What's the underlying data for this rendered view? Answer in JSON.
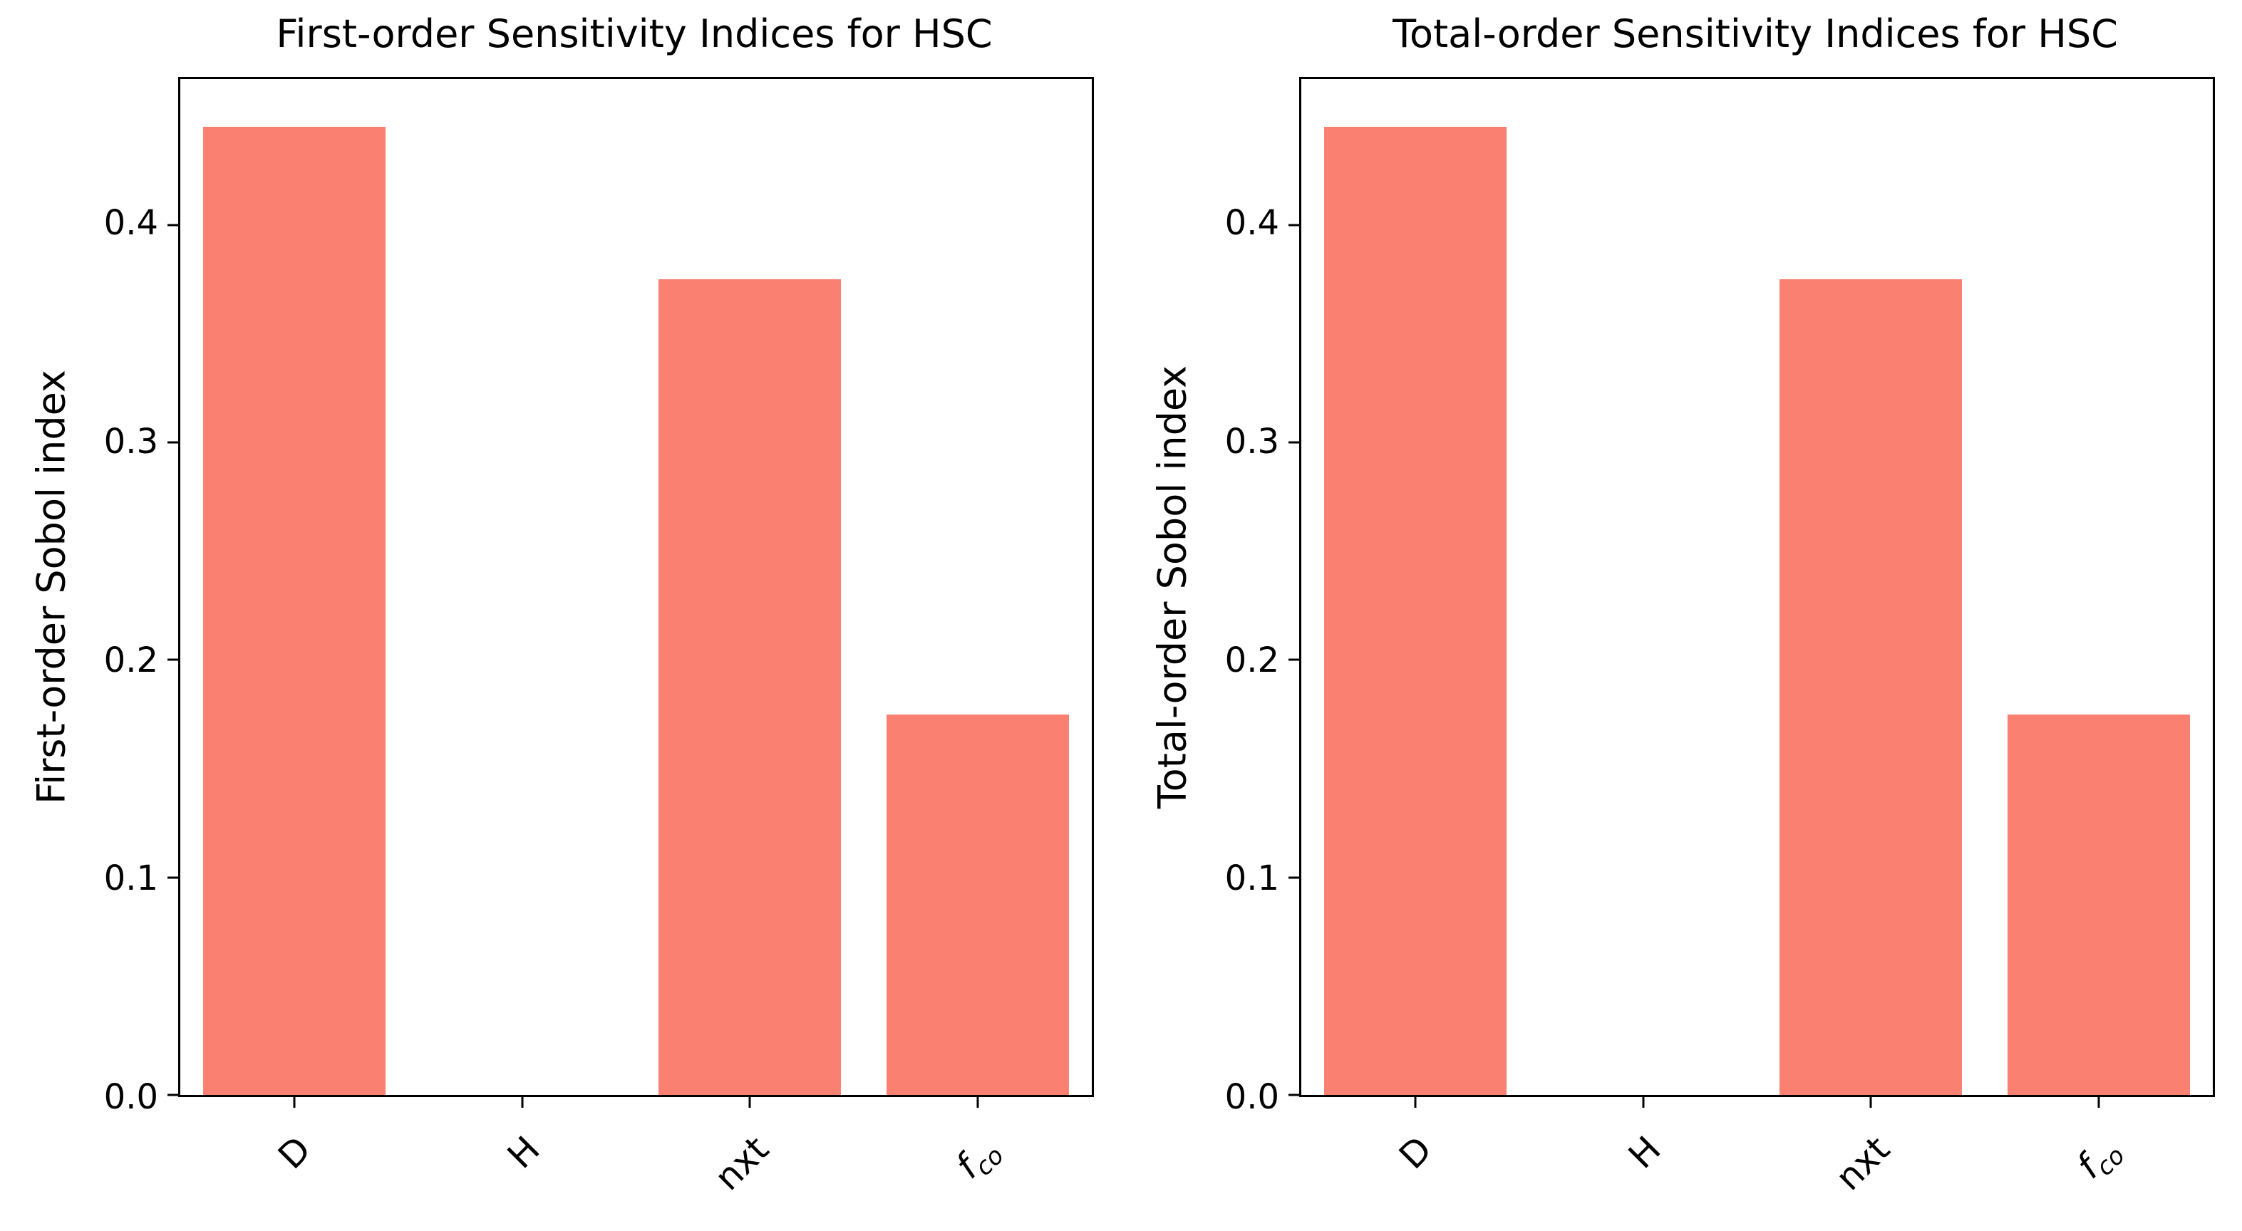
{
  "figure": {
    "background": "#ffffff",
    "axis_color": "#000000"
  },
  "chart_data": [
    {
      "type": "bar",
      "title": "First-order Sensitivity Indices for HSC",
      "ylabel": "First-order Sobol index",
      "xlabel": "",
      "categories": [
        {
          "main": "D",
          "sub": "",
          "italic": false
        },
        {
          "main": "H",
          "sub": "",
          "italic": false
        },
        {
          "main": "nxt",
          "sub": "",
          "italic": false
        },
        {
          "main": "f",
          "sub": "co",
          "italic": true
        }
      ],
      "values": [
        0.445,
        0.0,
        0.375,
        0.175
      ],
      "ylim": [
        0,
        0.467
      ],
      "yticks": [
        "0.0",
        "0.1",
        "0.2",
        "0.3",
        "0.4"
      ],
      "bar_color": "#fa8072",
      "bar_width_frac": 0.8,
      "grid": false,
      "legend": null
    },
    {
      "type": "bar",
      "title": "Total-order Sensitivity Indices for HSC",
      "ylabel": "Total-order Sobol index",
      "xlabel": "",
      "categories": [
        {
          "main": "D",
          "sub": "",
          "italic": false
        },
        {
          "main": "H",
          "sub": "",
          "italic": false
        },
        {
          "main": "nxt",
          "sub": "",
          "italic": false
        },
        {
          "main": "f",
          "sub": "co",
          "italic": true
        }
      ],
      "values": [
        0.445,
        0.0,
        0.375,
        0.175
      ],
      "ylim": [
        0,
        0.467
      ],
      "yticks": [
        "0.0",
        "0.1",
        "0.2",
        "0.3",
        "0.4"
      ],
      "bar_color": "#fa8072",
      "bar_width_frac": 0.8,
      "grid": false,
      "legend": null
    }
  ]
}
